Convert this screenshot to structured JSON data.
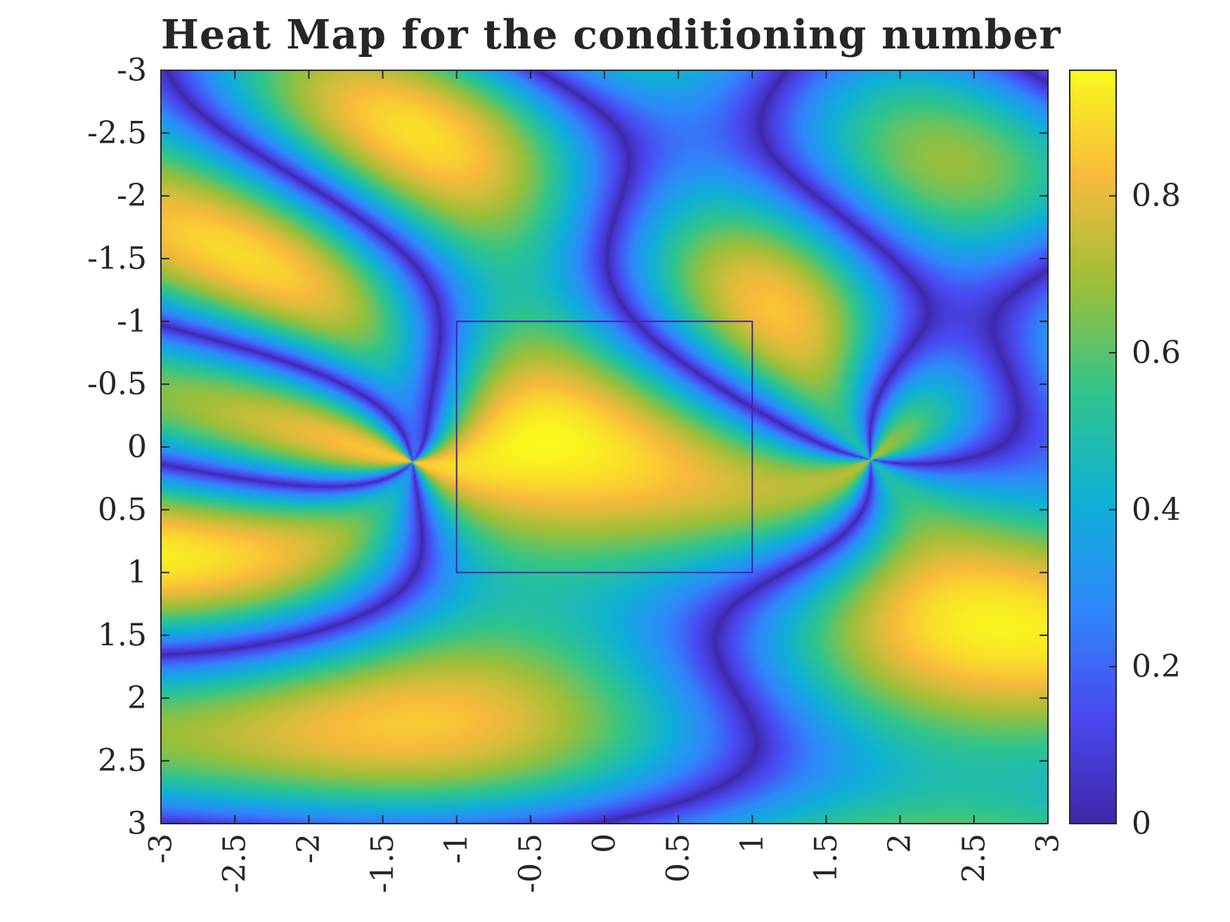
{
  "chart_data": {
    "type": "heatmap",
    "title": "Heat Map for the conditioning number",
    "xlabel": "",
    "ylabel": "",
    "xlim": [
      -3,
      3
    ],
    "ylim": [
      -3,
      3
    ],
    "y_axis_direction": "reversed",
    "x_ticks": [
      "-3",
      "-2.5",
      "-2",
      "-1.5",
      "-1",
      "-0.5",
      "0",
      "0.5",
      "1",
      "1.5",
      "2",
      "2.5",
      "3"
    ],
    "y_ticks": [
      "-3",
      "-2.5",
      "-2",
      "-1.5",
      "-1",
      "-0.5",
      "0",
      "0.5",
      "1",
      "1.5",
      "2",
      "2.5",
      "3"
    ],
    "colorbar": {
      "range": [
        0,
        0.96
      ],
      "ticks": [
        "0",
        "0.2",
        "0.4",
        "0.6",
        "0.8"
      ],
      "colormap": "parula"
    },
    "region_box": {
      "x": [
        -1,
        1
      ],
      "y": [
        -1,
        1
      ]
    },
    "grid": false
  },
  "colors": {
    "axis": "#262626",
    "box": "#3e26a8",
    "colormap_stops": [
      "#3e26a8",
      "#4a49f0",
      "#2f89fb",
      "#0fb0d6",
      "#30c58c",
      "#9cbf39",
      "#f7ba3c",
      "#faf91e"
    ]
  }
}
